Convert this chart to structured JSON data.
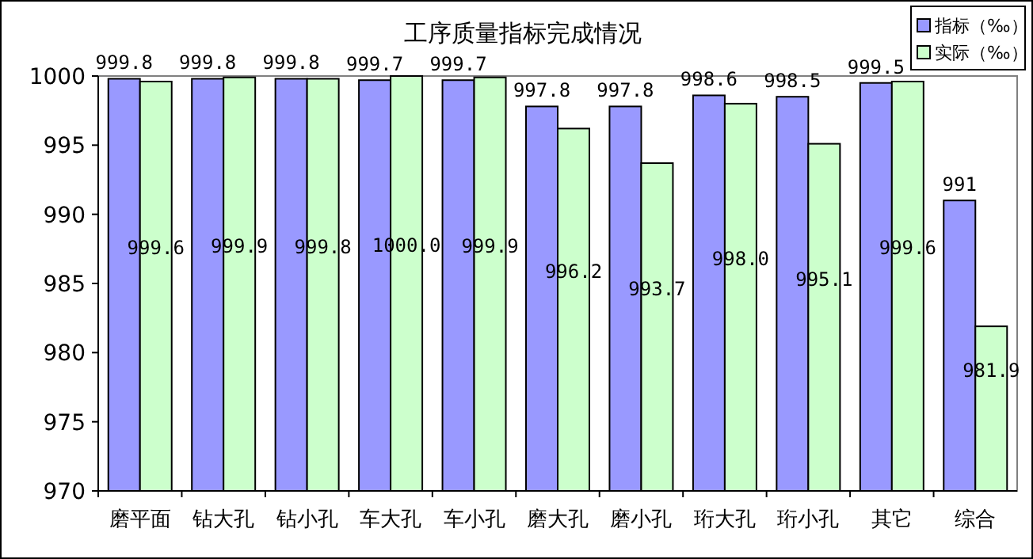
{
  "chart_data": {
    "type": "bar",
    "title": "工序质量指标完成情况",
    "categories": [
      "磨平面",
      "钻大孔",
      "钻小孔",
      "车大孔",
      "车小孔",
      "磨大孔",
      "磨小孔",
      "珩大孔",
      "珩小孔",
      "其它",
      "综合"
    ],
    "series": [
      {
        "name": "指标（‰）",
        "color": "#9999ff",
        "values": [
          999.8,
          999.8,
          999.8,
          999.7,
          999.7,
          997.8,
          997.8,
          998.6,
          998.5,
          999.5,
          991
        ],
        "value_labels": [
          "999.8",
          "999.8",
          "999.8",
          "999.7",
          "999.7",
          "997.8",
          "997.8",
          "998.6",
          "998.5",
          "999.5",
          "991"
        ]
      },
      {
        "name": "实际（‰）",
        "color": "#ccffcc",
        "values": [
          999.6,
          999.9,
          999.8,
          1000.0,
          999.9,
          996.2,
          993.7,
          998.0,
          995.1,
          999.6,
          981.9
        ],
        "value_labels": [
          "999.6",
          "999.9",
          "999.8",
          "1000.0",
          "999.9",
          "996.2",
          "993.7",
          "998.0",
          "995.1",
          "999.6",
          "981.9"
        ]
      }
    ],
    "ylim": [
      970,
      1000
    ],
    "yticks": [
      970,
      975,
      980,
      985,
      990,
      995,
      1000
    ],
    "grid": false,
    "legend": "top right"
  }
}
